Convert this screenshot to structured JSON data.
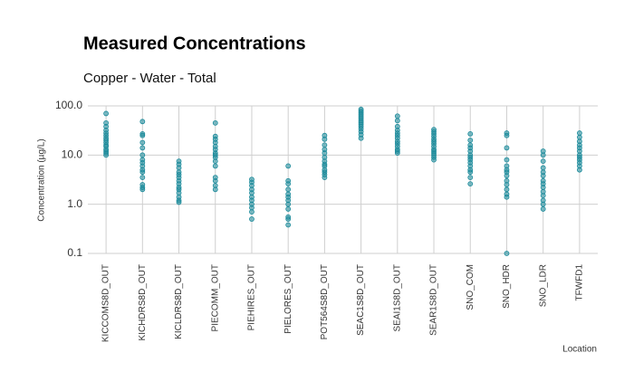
{
  "chart_data": {
    "type": "strip",
    "title": "Measured Concentrations",
    "subtitle": "Copper - Water - Total",
    "y_label": "Concentration (µg/L)",
    "x_label": "Location",
    "log_scale_y": true,
    "grid": true,
    "color": "#1b8a9a",
    "ylim": [
      0.1,
      100
    ],
    "yticks": [
      0.1,
      {
        "value": 1,
        "label": "1.0"
      },
      {
        "value": 10,
        "label": "10.0"
      },
      {
        "value": 100,
        "label": "100.0"
      }
    ],
    "categories": [
      "KICCOMS8D_OUT",
      "KICHDRS8D_OUT",
      "KICLDRS8D_OUT",
      "PIECOMM_OUT",
      "PIEHIRES_OUT",
      "PIELORES_OUT",
      "POT564S8D_OUT",
      "SEAC1S8D_OUT",
      "SEAI1S8D_OUT",
      "SEAR1S8D_OUT",
      "SNO_COM",
      "SNO_HDR",
      "SNO_LDR",
      "TFWFD1"
    ],
    "values": [
      [
        70,
        45,
        38,
        32,
        28,
        25,
        22,
        20,
        18,
        16,
        15,
        13,
        12,
        11,
        10
      ],
      [
        48,
        27,
        25,
        18,
        14,
        10,
        8,
        7,
        6,
        5,
        4.5,
        3.5,
        2.5,
        2.2,
        2
      ],
      [
        7.5,
        6.5,
        5.5,
        4.5,
        4,
        3.5,
        3,
        2.6,
        2.2,
        2,
        1.7,
        1.4,
        1.2,
        1.1
      ],
      [
        45,
        24,
        21,
        18,
        15,
        13,
        11,
        10,
        9,
        7.5,
        6,
        3.5,
        3,
        2.4,
        2
      ],
      [
        3.2,
        2.8,
        2.4,
        2,
        1.7,
        1.4,
        1.2,
        1,
        0.85,
        0.7,
        0.5
      ],
      [
        6,
        3,
        2.6,
        2,
        1.6,
        1.4,
        1.2,
        1,
        0.8,
        0.55,
        0.5,
        0.38
      ],
      [
        25,
        21,
        16,
        13,
        11,
        9,
        7.5,
        6.5,
        6,
        5,
        4.5,
        4,
        3.5
      ],
      [
        85,
        78,
        72,
        66,
        60,
        55,
        50,
        46,
        42,
        38,
        34,
        30,
        26,
        22
      ],
      [
        62,
        50,
        38,
        32,
        28,
        25,
        22,
        19,
        17,
        15,
        13,
        12,
        11
      ],
      [
        33,
        30,
        27,
        24,
        21,
        19,
        17,
        15,
        13,
        12,
        11,
        10,
        9,
        8
      ],
      [
        27,
        20,
        16,
        14,
        12,
        10,
        9,
        8,
        7,
        6,
        5,
        4.5,
        3.5,
        2.6
      ],
      [
        28,
        25,
        14,
        8,
        6,
        5,
        4.5,
        3.8,
        3,
        2.5,
        2,
        1.6,
        1.4,
        0.1
      ],
      [
        12,
        10,
        7.5,
        5.5,
        4.5,
        3.8,
        3,
        2.6,
        2.2,
        1.8,
        1.5,
        1.2,
        1,
        0.8
      ],
      [
        28,
        23,
        19,
        16,
        14,
        12,
        10,
        9,
        8,
        7,
        6,
        5
      ]
    ]
  }
}
